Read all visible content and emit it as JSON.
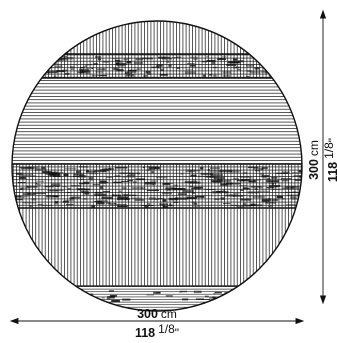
{
  "dimensions": {
    "width": {
      "metric_value": "300",
      "metric_unit": "cm",
      "imperial_whole": "118",
      "imperial_fraction": "1/8",
      "imperial_unit": "\""
    },
    "height": {
      "metric_value": "300",
      "metric_unit": "cm",
      "imperial_whole": "118",
      "imperial_fraction": "1/8",
      "imperial_unit": "\""
    }
  },
  "colors": {
    "line": "#111111",
    "background": "#ffffff"
  }
}
